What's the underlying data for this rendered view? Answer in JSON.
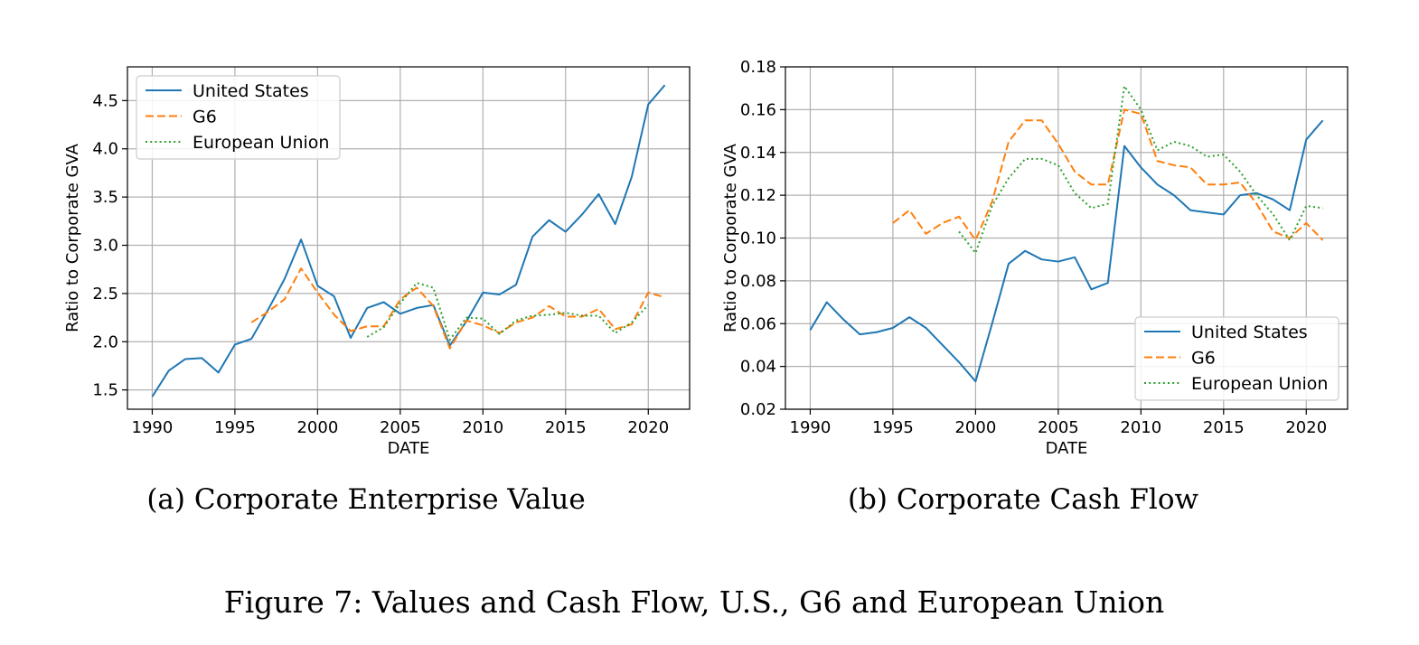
{
  "figure_caption": "Figure 7: Values and Cash Flow, U.S., G6 and European Union",
  "colors": {
    "us": "#1f77b4",
    "g6": "#ff7f0e",
    "eu": "#2ca02c",
    "grid": "#b0b0b0",
    "axis": "#000000"
  },
  "chart_data": [
    {
      "type": "line",
      "caption": "(a) Corporate Enterprise Value",
      "xlabel": "DATE",
      "ylabel": "Ratio to Corporate GVA",
      "xlim": [
        1988.5,
        2022.5
      ],
      "ylim": [
        1.3,
        4.85
      ],
      "xticks": [
        1990,
        1995,
        2000,
        2005,
        2010,
        2015,
        2020
      ],
      "yticks": [
        1.5,
        2.0,
        2.5,
        3.0,
        3.5,
        4.0,
        4.5
      ],
      "ytick_labels": [
        "1.5",
        "2.0",
        "2.5",
        "3.0",
        "3.5",
        "4.0",
        "4.5"
      ],
      "grid": true,
      "legend_position": "upper-left",
      "series": [
        {
          "name": "United States",
          "style": "solid",
          "color": "#1f77b4",
          "x": [
            1990,
            1991,
            1992,
            1993,
            1994,
            1995,
            1996,
            1997,
            1998,
            1999,
            2000,
            2001,
            2002,
            2003,
            2004,
            2005,
            2006,
            2007,
            2008,
            2009,
            2010,
            2011,
            2012,
            2013,
            2014,
            2015,
            2016,
            2017,
            2018,
            2019,
            2020,
            2021
          ],
          "y": [
            1.43,
            1.7,
            1.82,
            1.83,
            1.68,
            1.97,
            2.03,
            2.33,
            2.65,
            3.06,
            2.58,
            2.47,
            2.04,
            2.35,
            2.41,
            2.29,
            2.35,
            2.38,
            1.96,
            2.21,
            2.51,
            2.49,
            2.59,
            3.09,
            3.26,
            3.14,
            3.32,
            3.53,
            3.22,
            3.71,
            4.46,
            4.66
          ]
        },
        {
          "name": "G6",
          "style": "dashed",
          "color": "#ff7f0e",
          "x": [
            1996,
            1997,
            1998,
            1999,
            2000,
            2001,
            2002,
            2003,
            2004,
            2005,
            2006,
            2007,
            2008,
            2009,
            2010,
            2011,
            2012,
            2013,
            2014,
            2015,
            2016,
            2017,
            2018,
            2019,
            2020,
            2021
          ],
          "y": [
            2.2,
            2.31,
            2.44,
            2.76,
            2.51,
            2.28,
            2.11,
            2.16,
            2.16,
            2.44,
            2.56,
            2.37,
            1.93,
            2.22,
            2.17,
            2.09,
            2.2,
            2.25,
            2.37,
            2.26,
            2.26,
            2.34,
            2.13,
            2.18,
            2.51,
            2.46
          ]
        },
        {
          "name": "European Union",
          "style": "dotted",
          "color": "#2ca02c",
          "x": [
            2003,
            2004,
            2005,
            2006,
            2007,
            2008,
            2009,
            2010,
            2011,
            2012,
            2013,
            2014,
            2015,
            2016,
            2017,
            2018,
            2019,
            2020
          ],
          "y": [
            2.05,
            2.15,
            2.4,
            2.61,
            2.56,
            2.02,
            2.25,
            2.24,
            2.08,
            2.22,
            2.27,
            2.28,
            2.3,
            2.27,
            2.27,
            2.09,
            2.2,
            2.38
          ]
        }
      ]
    },
    {
      "type": "line",
      "caption": "(b) Corporate Cash Flow",
      "xlabel": "DATE",
      "ylabel": "Ratio to Corporate GVA",
      "xlim": [
        1988.5,
        2022.5
      ],
      "ylim": [
        0.02,
        0.18
      ],
      "xticks": [
        1990,
        1995,
        2000,
        2005,
        2010,
        2015,
        2020
      ],
      "yticks": [
        0.02,
        0.04,
        0.06,
        0.08,
        0.1,
        0.12,
        0.14,
        0.16,
        0.18
      ],
      "ytick_labels": [
        "0.02",
        "0.04",
        "0.06",
        "0.08",
        "0.10",
        "0.12",
        "0.14",
        "0.16",
        "0.18"
      ],
      "grid": true,
      "legend_position": "lower-right",
      "series": [
        {
          "name": "United States",
          "style": "solid",
          "color": "#1f77b4",
          "x": [
            1990,
            1991,
            1992,
            1993,
            1994,
            1995,
            1996,
            1997,
            1998,
            1999,
            2000,
            2001,
            2002,
            2003,
            2004,
            2005,
            2006,
            2007,
            2008,
            2009,
            2010,
            2011,
            2012,
            2013,
            2014,
            2015,
            2016,
            2017,
            2018,
            2019,
            2020,
            2021
          ],
          "y": [
            0.057,
            0.07,
            0.062,
            0.055,
            0.056,
            0.058,
            0.063,
            0.058,
            0.05,
            0.042,
            0.033,
            0.06,
            0.088,
            0.094,
            0.09,
            0.089,
            0.091,
            0.076,
            0.079,
            0.143,
            0.133,
            0.125,
            0.12,
            0.113,
            0.112,
            0.111,
            0.12,
            0.121,
            0.118,
            0.113,
            0.146,
            0.155
          ]
        },
        {
          "name": "G6",
          "style": "dashed",
          "color": "#ff7f0e",
          "x": [
            1995,
            1996,
            1997,
            1998,
            1999,
            2000,
            2001,
            2002,
            2003,
            2004,
            2005,
            2006,
            2007,
            2008,
            2009,
            2010,
            2011,
            2012,
            2013,
            2014,
            2015,
            2016,
            2017,
            2018,
            2019,
            2020,
            2021
          ],
          "y": [
            0.107,
            0.113,
            0.102,
            0.107,
            0.11,
            0.099,
            0.117,
            0.145,
            0.155,
            0.155,
            0.144,
            0.131,
            0.125,
            0.125,
            0.16,
            0.158,
            0.136,
            0.134,
            0.133,
            0.125,
            0.125,
            0.126,
            0.116,
            0.103,
            0.1,
            0.107,
            0.099
          ]
        },
        {
          "name": "European Union",
          "style": "dotted",
          "color": "#2ca02c",
          "x": [
            1999,
            2000,
            2001,
            2002,
            2003,
            2004,
            2005,
            2006,
            2007,
            2008,
            2009,
            2010,
            2011,
            2012,
            2013,
            2014,
            2015,
            2016,
            2017,
            2018,
            2019,
            2020,
            2021
          ],
          "y": [
            0.103,
            0.093,
            0.115,
            0.128,
            0.137,
            0.137,
            0.134,
            0.121,
            0.114,
            0.116,
            0.171,
            0.16,
            0.141,
            0.145,
            0.143,
            0.138,
            0.139,
            0.131,
            0.12,
            0.111,
            0.099,
            0.115,
            0.114
          ]
        }
      ]
    }
  ]
}
